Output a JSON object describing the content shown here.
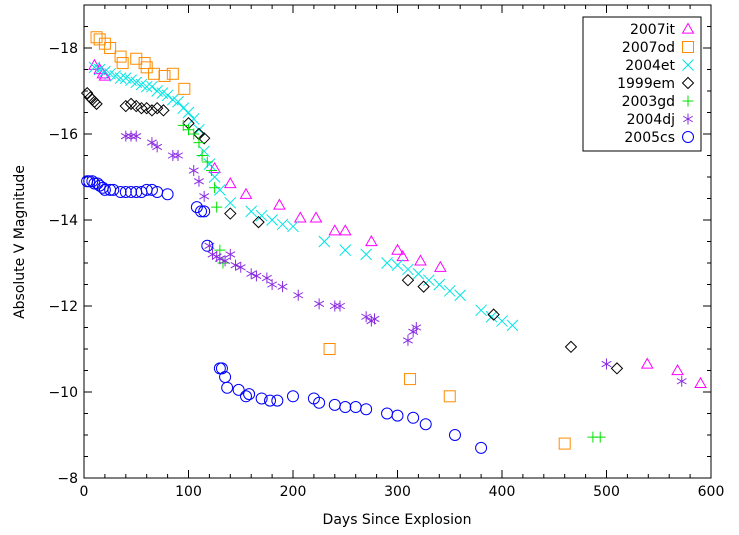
{
  "chart_data": {
    "type": "scatter",
    "title": "",
    "xlabel": "Days Since Explosion",
    "ylabel": "Absolute V Magnitude",
    "xlim": [
      0,
      600
    ],
    "ylim": [
      -8,
      -19
    ],
    "y_inverted": true,
    "x_ticks": [
      0,
      100,
      200,
      300,
      400,
      500,
      600
    ],
    "y_ticks": [
      -8,
      -10,
      -12,
      -14,
      -16,
      -18
    ],
    "grid": false,
    "legend_position": "top-right",
    "series": [
      {
        "name": "2007it",
        "marker": "triangle",
        "color": "#ff00ff",
        "points": [
          [
            10,
            -17.6
          ],
          [
            15,
            -17.5
          ],
          [
            18,
            -17.4
          ],
          [
            20,
            -17.35
          ],
          [
            125,
            -15.2
          ],
          [
            140,
            -14.85
          ],
          [
            155,
            -14.6
          ],
          [
            187,
            -14.35
          ],
          [
            207,
            -14.05
          ],
          [
            222,
            -14.05
          ],
          [
            240,
            -13.75
          ],
          [
            250,
            -13.75
          ],
          [
            275,
            -13.5
          ],
          [
            300,
            -13.3
          ],
          [
            305,
            -13.15
          ],
          [
            322,
            -13.05
          ],
          [
            341,
            -12.9
          ],
          [
            539,
            -10.65
          ],
          [
            568,
            -10.5
          ],
          [
            590,
            -10.2
          ]
        ]
      },
      {
        "name": "2007od",
        "marker": "square",
        "color": "#ff8c00",
        "points": [
          [
            12,
            -18.25
          ],
          [
            15,
            -18.2
          ],
          [
            20,
            -18.1
          ],
          [
            25,
            -18.0
          ],
          [
            35,
            -17.8
          ],
          [
            37,
            -17.65
          ],
          [
            50,
            -17.75
          ],
          [
            58,
            -17.65
          ],
          [
            60,
            -17.55
          ],
          [
            67,
            -17.4
          ],
          [
            77,
            -17.35
          ],
          [
            85,
            -17.4
          ],
          [
            96,
            -17.05
          ],
          [
            235,
            -11.0
          ],
          [
            312,
            -10.3
          ],
          [
            350,
            -9.9
          ],
          [
            460,
            -8.8
          ]
        ]
      },
      {
        "name": "2004et",
        "marker": "x",
        "color": "#00e5e5",
        "points": [
          [
            10,
            -17.55
          ],
          [
            15,
            -17.5
          ],
          [
            20,
            -17.45
          ],
          [
            25,
            -17.4
          ],
          [
            30,
            -17.35
          ],
          [
            35,
            -17.3
          ],
          [
            40,
            -17.3
          ],
          [
            45,
            -17.25
          ],
          [
            50,
            -17.2
          ],
          [
            55,
            -17.15
          ],
          [
            60,
            -17.1
          ],
          [
            65,
            -17.1
          ],
          [
            70,
            -17.0
          ],
          [
            75,
            -16.95
          ],
          [
            80,
            -16.9
          ],
          [
            85,
            -16.8
          ],
          [
            90,
            -16.75
          ],
          [
            95,
            -16.6
          ],
          [
            100,
            -16.5
          ],
          [
            105,
            -16.35
          ],
          [
            110,
            -16.1
          ],
          [
            115,
            -15.6
          ],
          [
            120,
            -15.3
          ],
          [
            125,
            -15.0
          ],
          [
            130,
            -14.7
          ],
          [
            140,
            -14.4
          ],
          [
            160,
            -14.2
          ],
          [
            170,
            -14.1
          ],
          [
            180,
            -14.0
          ],
          [
            190,
            -13.9
          ],
          [
            200,
            -13.85
          ],
          [
            230,
            -13.5
          ],
          [
            250,
            -13.3
          ],
          [
            270,
            -13.2
          ],
          [
            290,
            -13.0
          ],
          [
            300,
            -12.95
          ],
          [
            310,
            -12.85
          ],
          [
            320,
            -12.75
          ],
          [
            330,
            -12.6
          ],
          [
            340,
            -12.5
          ],
          [
            350,
            -12.35
          ],
          [
            360,
            -12.25
          ],
          [
            380,
            -11.9
          ],
          [
            390,
            -11.75
          ],
          [
            400,
            -11.65
          ],
          [
            410,
            -11.55
          ]
        ]
      },
      {
        "name": "1999em",
        "marker": "diamond",
        "color": "#000000",
        "points": [
          [
            3,
            -16.95
          ],
          [
            6,
            -16.85
          ],
          [
            8,
            -16.8
          ],
          [
            10,
            -16.75
          ],
          [
            12,
            -16.7
          ],
          [
            40,
            -16.65
          ],
          [
            45,
            -16.7
          ],
          [
            50,
            -16.65
          ],
          [
            55,
            -16.6
          ],
          [
            60,
            -16.6
          ],
          [
            65,
            -16.55
          ],
          [
            70,
            -16.6
          ],
          [
            76,
            -16.55
          ],
          [
            100,
            -16.25
          ],
          [
            110,
            -16.0
          ],
          [
            115,
            -15.9
          ],
          [
            140,
            -14.15
          ],
          [
            167,
            -13.95
          ],
          [
            310,
            -12.6
          ],
          [
            325,
            -12.45
          ],
          [
            392,
            -11.8
          ],
          [
            466,
            -11.05
          ],
          [
            510,
            -10.55
          ]
        ]
      },
      {
        "name": "2003gd",
        "marker": "plus",
        "color": "#00e000",
        "points": [
          [
            95,
            -16.2
          ],
          [
            100,
            -16.1
          ],
          [
            105,
            -16.0
          ],
          [
            110,
            -15.8
          ],
          [
            113,
            -15.5
          ],
          [
            118,
            -15.35
          ],
          [
            122,
            -15.15
          ],
          [
            125,
            -14.75
          ],
          [
            127,
            -14.3
          ],
          [
            130,
            -13.3
          ],
          [
            133,
            -13.0
          ],
          [
            487,
            -8.95
          ],
          [
            494,
            -8.95
          ]
        ]
      },
      {
        "name": "2004dj",
        "marker": "asterisk",
        "color": "#8a2be2",
        "points": [
          [
            40,
            -15.95
          ],
          [
            45,
            -15.95
          ],
          [
            50,
            -15.95
          ],
          [
            65,
            -15.8
          ],
          [
            70,
            -15.7
          ],
          [
            85,
            -15.5
          ],
          [
            90,
            -15.5
          ],
          [
            105,
            -15.15
          ],
          [
            110,
            -14.9
          ],
          [
            115,
            -14.55
          ],
          [
            120,
            -13.4
          ],
          [
            123,
            -13.2
          ],
          [
            127,
            -13.15
          ],
          [
            130,
            -13.1
          ],
          [
            135,
            -13.05
          ],
          [
            140,
            -13.2
          ],
          [
            145,
            -12.95
          ],
          [
            150,
            -12.9
          ],
          [
            160,
            -12.75
          ],
          [
            165,
            -12.7
          ],
          [
            175,
            -12.65
          ],
          [
            180,
            -12.5
          ],
          [
            190,
            -12.45
          ],
          [
            205,
            -12.25
          ],
          [
            225,
            -12.05
          ],
          [
            240,
            -12.0
          ],
          [
            245,
            -12.0
          ],
          [
            270,
            -11.75
          ],
          [
            275,
            -11.65
          ],
          [
            278,
            -11.7
          ],
          [
            310,
            -11.2
          ],
          [
            315,
            -11.4
          ],
          [
            318,
            -11.5
          ],
          [
            500,
            -10.65
          ],
          [
            572,
            -10.25
          ]
        ]
      },
      {
        "name": "2005cs",
        "marker": "circle",
        "color": "#0000ff",
        "points": [
          [
            3,
            -14.9
          ],
          [
            5,
            -14.9
          ],
          [
            8,
            -14.9
          ],
          [
            10,
            -14.85
          ],
          [
            13,
            -14.85
          ],
          [
            15,
            -14.8
          ],
          [
            18,
            -14.75
          ],
          [
            20,
            -14.7
          ],
          [
            25,
            -14.7
          ],
          [
            28,
            -14.7
          ],
          [
            35,
            -14.65
          ],
          [
            40,
            -14.65
          ],
          [
            45,
            -14.65
          ],
          [
            50,
            -14.65
          ],
          [
            55,
            -14.65
          ],
          [
            60,
            -14.7
          ],
          [
            65,
            -14.7
          ],
          [
            70,
            -14.65
          ],
          [
            80,
            -14.6
          ],
          [
            108,
            -14.3
          ],
          [
            112,
            -14.2
          ],
          [
            115,
            -14.2
          ],
          [
            118,
            -13.4
          ],
          [
            130,
            -10.55
          ],
          [
            132,
            -10.55
          ],
          [
            135,
            -10.35
          ],
          [
            137,
            -10.1
          ],
          [
            148,
            -10.05
          ],
          [
            155,
            -9.9
          ],
          [
            158,
            -9.95
          ],
          [
            170,
            -9.85
          ],
          [
            178,
            -9.8
          ],
          [
            185,
            -9.8
          ],
          [
            200,
            -9.9
          ],
          [
            220,
            -9.85
          ],
          [
            225,
            -9.75
          ],
          [
            240,
            -9.7
          ],
          [
            250,
            -9.65
          ],
          [
            260,
            -9.65
          ],
          [
            270,
            -9.6
          ],
          [
            290,
            -9.5
          ],
          [
            300,
            -9.45
          ],
          [
            315,
            -9.4
          ],
          [
            327,
            -9.25
          ],
          [
            355,
            -9.0
          ],
          [
            380,
            -8.7
          ]
        ]
      }
    ]
  }
}
